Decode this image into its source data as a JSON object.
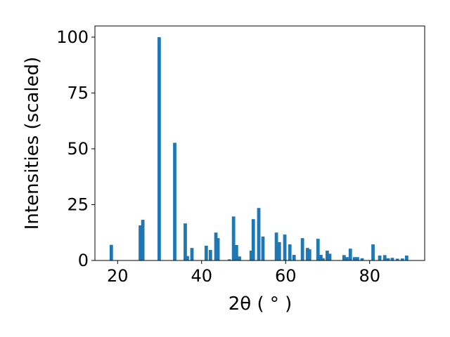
{
  "chart_data": {
    "type": "bar",
    "xlabel": "2θ ( ° )",
    "ylabel": "Intensities (scaled)",
    "x": [
      18.5,
      25.4,
      26.0,
      29.9,
      33.6,
      36.1,
      36.6,
      37.7,
      41.1,
      42.1,
      43.4,
      43.9,
      46.6,
      47.6,
      48.3,
      49.0,
      51.8,
      52.3,
      53.6,
      54.6,
      57.8,
      58.5,
      59.8,
      61.0,
      62.0,
      64.0,
      65.2,
      65.7,
      67.7,
      68.4,
      68.9,
      69.9,
      70.5,
      73.9,
      74.6,
      75.4,
      76.4,
      77.1,
      78.2,
      80.8,
      82.4,
      83.6,
      84.4,
      85.4,
      86.6,
      87.8,
      88.8
    ],
    "values": [
      7,
      15.7,
      18.2,
      100,
      52.7,
      16.6,
      2,
      5.6,
      6.6,
      4.7,
      12.5,
      10,
      0.5,
      19.7,
      6.9,
      1.8,
      4.4,
      18.5,
      23.5,
      10.7,
      12.5,
      8.2,
      11.6,
      7.2,
      2.5,
      10,
      5.6,
      5,
      9.7,
      2.5,
      1,
      4.4,
      3,
      2.4,
      1.5,
      5.3,
      1.5,
      1.5,
      1,
      7.2,
      2.2,
      2.4,
      1,
      1.2,
      0.8,
      0.9,
      2.2
    ],
    "color": "#1f77b4",
    "xlim": [
      14.6,
      93.1
    ],
    "ylim": [
      0,
      105
    ],
    "xticks": [
      20,
      40,
      60,
      80
    ],
    "yticks": [
      0,
      25,
      50,
      75,
      100
    ]
  }
}
